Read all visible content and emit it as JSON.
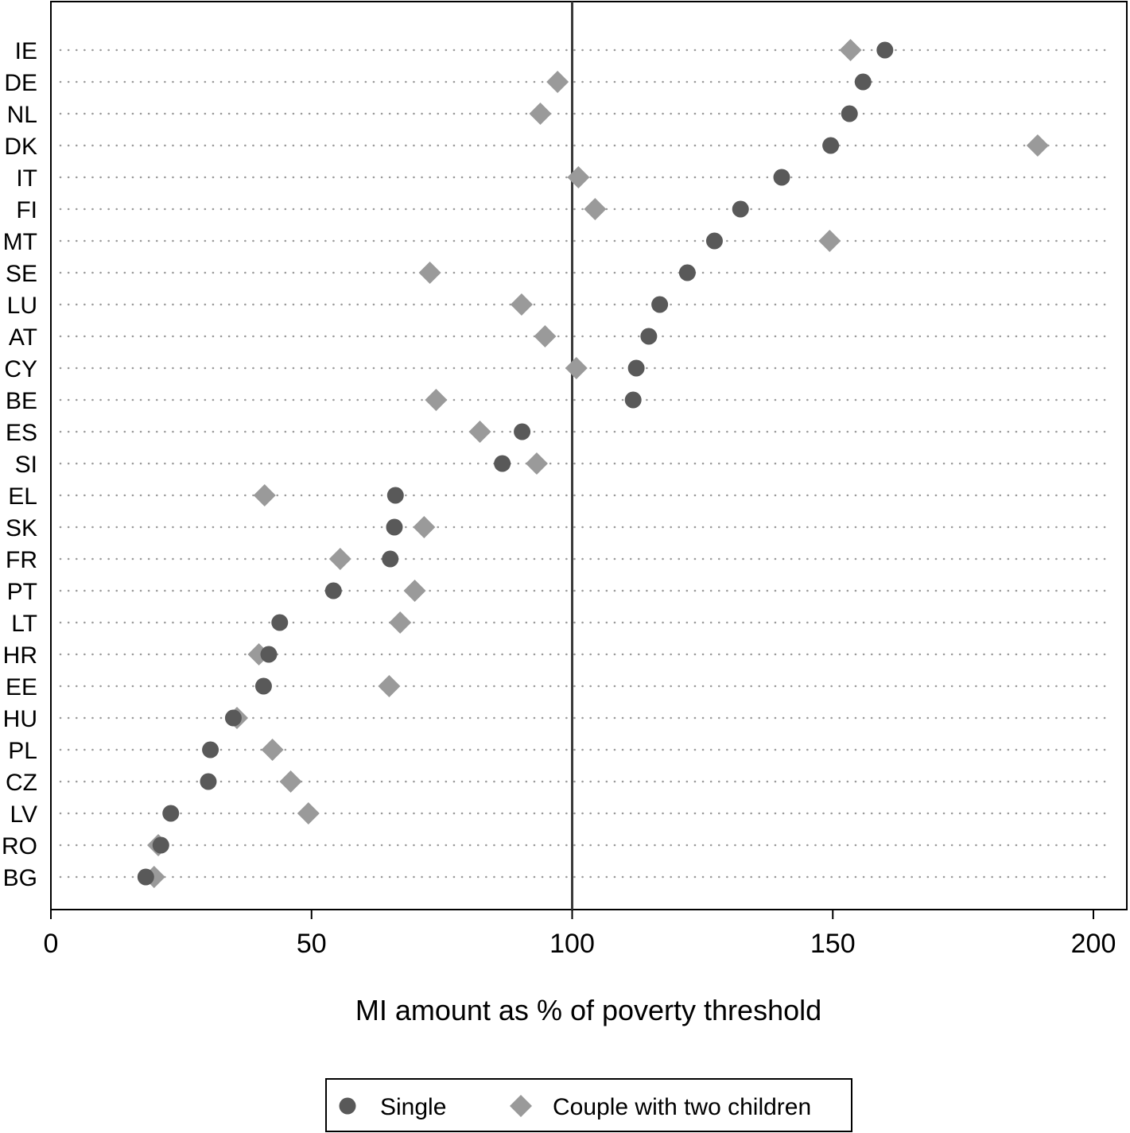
{
  "chart_data": {
    "type": "scatter",
    "orientation": "horizontal-dot-plot",
    "title": "",
    "xlabel": "MI amount as % of poverty threshold",
    "ylabel": "",
    "xlim": [
      0,
      207
    ],
    "xticks": [
      0,
      50,
      100,
      150,
      200
    ],
    "reference_line_x": 100,
    "grid": "dotted horizontal row lines",
    "legend_position": "bottom-center",
    "categories": [
      "IE",
      "DE",
      "NL",
      "DK",
      "IT",
      "FI",
      "MT",
      "SE",
      "LU",
      "AT",
      "CY",
      "BE",
      "ES",
      "SI",
      "EL",
      "SK",
      "FR",
      "PT",
      "LT",
      "HR",
      "EE",
      "HU",
      "PL",
      "CZ",
      "LV",
      "RO",
      "BG"
    ],
    "series": [
      {
        "name": "Single",
        "marker": "circle",
        "color": "#595959",
        "values": [
          160,
          155.8,
          153.2,
          149.6,
          140.2,
          132.3,
          127.3,
          122.1,
          116.8,
          114.7,
          112.3,
          111.7,
          90.4,
          86.6,
          66.1,
          65.9,
          65.1,
          54.2,
          43.9,
          41.8,
          40.8,
          35.0,
          30.6,
          30.2,
          23.0,
          21.1,
          18.2
        ]
      },
      {
        "name": "Couple with two children",
        "marker": "diamond",
        "color": "#9a9a9a",
        "values": [
          153.4,
          97.2,
          93.9,
          189.3,
          101.2,
          104.4,
          149.4,
          72.7,
          90.3,
          94.8,
          100.8,
          73.9,
          82.3,
          93.2,
          41.0,
          71.6,
          55.5,
          69.8,
          67.0,
          39.9,
          64.9,
          35.7,
          42.5,
          46.0,
          49.4,
          20.6,
          19.8
        ]
      }
    ]
  }
}
